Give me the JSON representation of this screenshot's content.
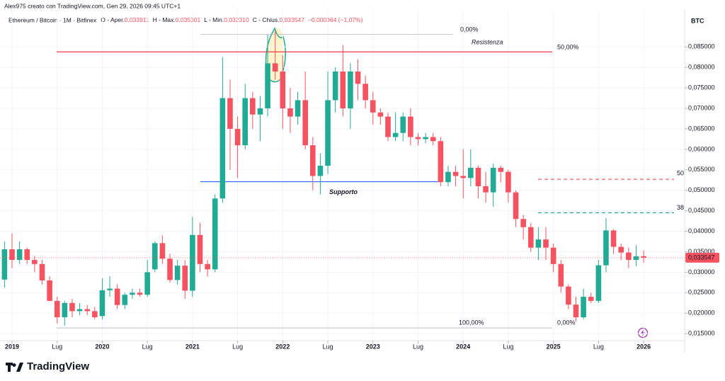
{
  "chart_data": {
    "type": "candlestick",
    "header": {
      "attribution": "Alex975 creato con TradingView.com, Gen 29, 2026 09:45 UTC+1",
      "symbol": "Ethereum / Bitcoin · 1M · Bitfinex",
      "ohlc": [
        {
          "label": "O - Aper.",
          "value": "0,033911"
        },
        {
          "label": "H - Max.",
          "value": "0,035301"
        },
        {
          "label": "L - Min.",
          "value": "0,032310"
        },
        {
          "label": "C - Chius.",
          "value": "0,033547"
        }
      ],
      "change": "−0,000364 (−1,07%)"
    },
    "y_axis_label": "BTC",
    "footer": "TradingView",
    "up_color": "#22ab94",
    "down_color": "#f7525f",
    "grid": true,
    "ylim": [
      0.0133,
      0.093
    ],
    "yticks": [
      {
        "value": 0.015,
        "label": "0,015000"
      },
      {
        "value": 0.02,
        "label": "0,020000"
      },
      {
        "value": 0.025,
        "label": "0,025000"
      },
      {
        "value": 0.03,
        "label": "0,030000"
      },
      {
        "value": 0.035,
        "label": "0,035000"
      },
      {
        "value": 0.04,
        "label": "0,040000"
      },
      {
        "value": 0.045,
        "label": "0,045000"
      },
      {
        "value": 0.05,
        "label": "0,050000"
      },
      {
        "value": 0.055,
        "label": "0,055000"
      },
      {
        "value": 0.06,
        "label": "0,060000"
      },
      {
        "value": 0.065,
        "label": "0,065000"
      },
      {
        "value": 0.07,
        "label": "0,070000"
      },
      {
        "value": 0.075,
        "label": "0,075000"
      },
      {
        "value": 0.08,
        "label": "0,080000"
      },
      {
        "value": 0.085,
        "label": "0,085000"
      }
    ],
    "xticks": [
      {
        "value": "2019-01",
        "label": "2019"
      },
      {
        "value": "2019-07",
        "label": "Lug"
      },
      {
        "value": "2020-01",
        "label": "2020"
      },
      {
        "value": "2020-07",
        "label": "Lug"
      },
      {
        "value": "2021-01",
        "label": "2021"
      },
      {
        "value": "2021-07",
        "label": "Lug"
      },
      {
        "value": "2022-01",
        "label": "2022"
      },
      {
        "value": "2022-07",
        "label": "Lug"
      },
      {
        "value": "2023-01",
        "label": "2023"
      },
      {
        "value": "2023-07",
        "label": "Lug"
      },
      {
        "value": "2024-01",
        "label": "2024"
      },
      {
        "value": "2024-07",
        "label": "Lug"
      },
      {
        "value": "2025-01",
        "label": "2025"
      },
      {
        "value": "2025-07",
        "label": "Lug"
      },
      {
        "value": "2026-01",
        "label": "2026"
      }
    ],
    "dates": [
      "2018-12",
      "2019-01",
      "2019-02",
      "2019-03",
      "2019-04",
      "2019-05",
      "2019-06",
      "2019-07",
      "2019-08",
      "2019-09",
      "2019-10",
      "2019-11",
      "2019-12",
      "2020-01",
      "2020-02",
      "2020-03",
      "2020-04",
      "2020-05",
      "2020-06",
      "2020-07",
      "2020-08",
      "2020-09",
      "2020-10",
      "2020-11",
      "2020-12",
      "2021-01",
      "2021-02",
      "2021-03",
      "2021-04",
      "2021-05",
      "2021-06",
      "2021-07",
      "2021-08",
      "2021-09",
      "2021-10",
      "2021-11",
      "2021-12",
      "2022-01",
      "2022-02",
      "2022-03",
      "2022-04",
      "2022-05",
      "2022-06",
      "2022-07",
      "2022-08",
      "2022-09",
      "2022-10",
      "2022-11",
      "2022-12",
      "2023-01",
      "2023-02",
      "2023-03",
      "2023-04",
      "2023-05",
      "2023-06",
      "2023-07",
      "2023-08",
      "2023-09",
      "2023-10",
      "2023-11",
      "2023-12",
      "2024-01",
      "2024-02",
      "2024-03",
      "2024-04",
      "2024-05",
      "2024-06",
      "2024-07",
      "2024-08",
      "2024-09",
      "2024-10",
      "2024-11",
      "2024-12",
      "2025-01",
      "2025-02",
      "2025-03",
      "2025-04",
      "2025-05",
      "2025-06",
      "2025-07",
      "2025-08",
      "2025-09",
      "2025-10",
      "2025-11",
      "2025-12",
      "2026-01"
    ],
    "open": [
      0.0282,
      0.0356,
      0.033,
      0.0356,
      0.033,
      0.032,
      0.028,
      0.023,
      0.019,
      0.0225,
      0.0205,
      0.021,
      0.0205,
      0.0193,
      0.0256,
      0.026,
      0.022,
      0.0245,
      0.025,
      0.0245,
      0.0307,
      0.0371,
      0.0333,
      0.0281,
      0.0316,
      0.0255,
      0.0391,
      0.032,
      0.0307,
      0.048,
      0.0725,
      0.065,
      0.061,
      0.0725,
      0.0685,
      0.07,
      0.081,
      0.079,
      0.07,
      0.068,
      0.072,
      0.061,
      0.0535,
      0.056,
      0.072,
      0.079,
      0.07,
      0.079,
      0.076,
      0.072,
      0.069,
      0.068,
      0.063,
      0.064,
      0.068,
      0.063,
      0.0625,
      0.063,
      0.062,
      0.052,
      0.0545,
      0.0535,
      0.053,
      0.0555,
      0.051,
      0.0495,
      0.0555,
      0.0545,
      0.0495,
      0.043,
      0.041,
      0.036,
      0.038,
      0.036,
      0.032,
      0.0265,
      0.0221,
      0.019,
      0.024,
      0.023,
      0.0317,
      0.0402,
      0.0362,
      0.0348,
      0.033,
      0.033911
    ],
    "high": [
      0.0375,
      0.0395,
      0.0375,
      0.036,
      0.034,
      0.033,
      0.029,
      0.024,
      0.023,
      0.0235,
      0.0225,
      0.022,
      0.0215,
      0.0285,
      0.029,
      0.027,
      0.025,
      0.026,
      0.026,
      0.033,
      0.0375,
      0.039,
      0.0345,
      0.033,
      0.033,
      0.0435,
      0.042,
      0.033,
      0.049,
      0.0825,
      0.077,
      0.068,
      0.076,
      0.074,
      0.073,
      0.088,
      0.089,
      0.083,
      0.075,
      0.074,
      0.079,
      0.063,
      0.059,
      0.079,
      0.08,
      0.0855,
      0.081,
      0.082,
      0.078,
      0.074,
      0.07,
      0.069,
      0.069,
      0.069,
      0.07,
      0.064,
      0.064,
      0.064,
      0.063,
      0.056,
      0.056,
      0.06,
      0.06,
      0.056,
      0.0545,
      0.0565,
      0.056,
      0.055,
      0.05,
      0.044,
      0.042,
      0.041,
      0.041,
      0.037,
      0.033,
      0.027,
      0.024,
      0.026,
      0.025,
      0.033,
      0.0432,
      0.0405,
      0.037,
      0.036,
      0.0365,
      0.035301
    ],
    "low": [
      0.0262,
      0.031,
      0.032,
      0.032,
      0.03,
      0.027,
      0.023,
      0.0175,
      0.017,
      0.019,
      0.0195,
      0.0195,
      0.0185,
      0.0185,
      0.024,
      0.021,
      0.021,
      0.0235,
      0.024,
      0.024,
      0.03,
      0.032,
      0.0275,
      0.027,
      0.0235,
      0.024,
      0.03,
      0.029,
      0.03,
      0.047,
      0.055,
      0.053,
      0.06,
      0.065,
      0.062,
      0.068,
      0.077,
      0.065,
      0.064,
      0.066,
      0.06,
      0.05,
      0.049,
      0.054,
      0.069,
      0.068,
      0.065,
      0.072,
      0.07,
      0.066,
      0.066,
      0.062,
      0.062,
      0.062,
      0.061,
      0.061,
      0.0615,
      0.061,
      0.051,
      0.051,
      0.051,
      0.048,
      0.051,
      0.048,
      0.047,
      0.046,
      0.052,
      0.047,
      0.041,
      0.038,
      0.035,
      0.033,
      0.033,
      0.03,
      0.025,
      0.021,
      0.018,
      0.0185,
      0.0225,
      0.0225,
      0.03,
      0.0345,
      0.033,
      0.031,
      0.0315,
      0.03231
    ],
    "close": [
      0.0356,
      0.033,
      0.0356,
      0.033,
      0.032,
      0.028,
      0.023,
      0.019,
      0.0225,
      0.0205,
      0.021,
      0.0205,
      0.019,
      0.0256,
      0.026,
      0.022,
      0.0245,
      0.025,
      0.0245,
      0.03,
      0.0371,
      0.0333,
      0.0281,
      0.0316,
      0.0255,
      0.0391,
      0.032,
      0.0307,
      0.048,
      0.0725,
      0.065,
      0.061,
      0.0725,
      0.0685,
      0.07,
      0.081,
      0.079,
      0.07,
      0.068,
      0.072,
      0.061,
      0.0535,
      0.056,
      0.072,
      0.079,
      0.07,
      0.079,
      0.076,
      0.072,
      0.069,
      0.068,
      0.063,
      0.064,
      0.068,
      0.063,
      0.0625,
      0.063,
      0.062,
      0.052,
      0.0545,
      0.0535,
      0.053,
      0.0555,
      0.051,
      0.0495,
      0.0555,
      0.0545,
      0.0495,
      0.043,
      0.041,
      0.036,
      0.038,
      0.036,
      0.032,
      0.0265,
      0.0221,
      0.019,
      0.024,
      0.023,
      0.0317,
      0.0402,
      0.0362,
      0.0348,
      0.033,
      0.0339,
      0.033547
    ],
    "last_price": {
      "value": 0.033547,
      "label": "0,033547"
    },
    "resistance": {
      "value": 0.0838,
      "label": "Resistenza",
      "pct": "50,00%",
      "color": "#f23645"
    },
    "support": {
      "value": 0.0521,
      "label": "Supporto",
      "color": "#2962ff"
    },
    "fib_top": {
      "value": 0.0881,
      "label": "0,00%"
    },
    "fib_bottom": {
      "value": 0.0164,
      "labels": [
        "100,00%",
        "0,00%"
      ]
    },
    "level_50": {
      "value": 0.0527,
      "label": "50",
      "color": "#f23645"
    },
    "level_38": {
      "value": 0.0445,
      "label": "38",
      "color": "#089981"
    }
  }
}
